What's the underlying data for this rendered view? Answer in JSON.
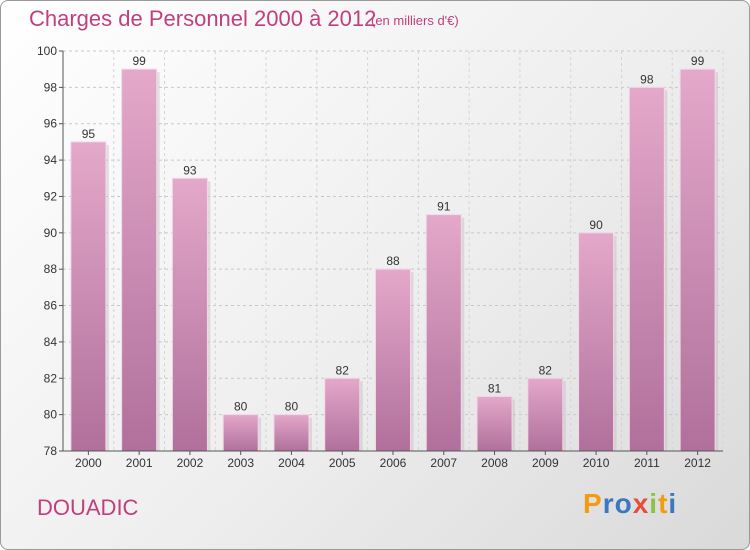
{
  "header": {
    "title": "Charges de Personnel 2000 à 2012",
    "subtitle": "(en milliers d'€)"
  },
  "footer": {
    "commune": "DOUADIC",
    "logo_letters": [
      "P",
      "r",
      "o",
      "x",
      "i",
      "t",
      "i"
    ],
    "logo_colors": [
      "#f39c12",
      "#3a78c2",
      "#3a78c2",
      "#e74c3c",
      "#8bc34a",
      "#f39c12",
      "#3a78c2"
    ]
  },
  "chart_data": {
    "type": "bar",
    "categories": [
      "2000",
      "2001",
      "2002",
      "2003",
      "2004",
      "2005",
      "2006",
      "2007",
      "2008",
      "2009",
      "2010",
      "2011",
      "2012"
    ],
    "values": [
      95,
      99,
      93,
      80,
      80,
      82,
      88,
      91,
      81,
      82,
      90,
      98,
      99
    ],
    "title": "Charges de Personnel 2000 à 2012",
    "subtitle": "(en milliers d'€)",
    "ylim": [
      78,
      100
    ],
    "yticks": [
      78,
      80,
      82,
      84,
      86,
      88,
      90,
      92,
      94,
      96,
      98,
      100
    ],
    "grid": true,
    "bar_color": "#d98ab5"
  }
}
